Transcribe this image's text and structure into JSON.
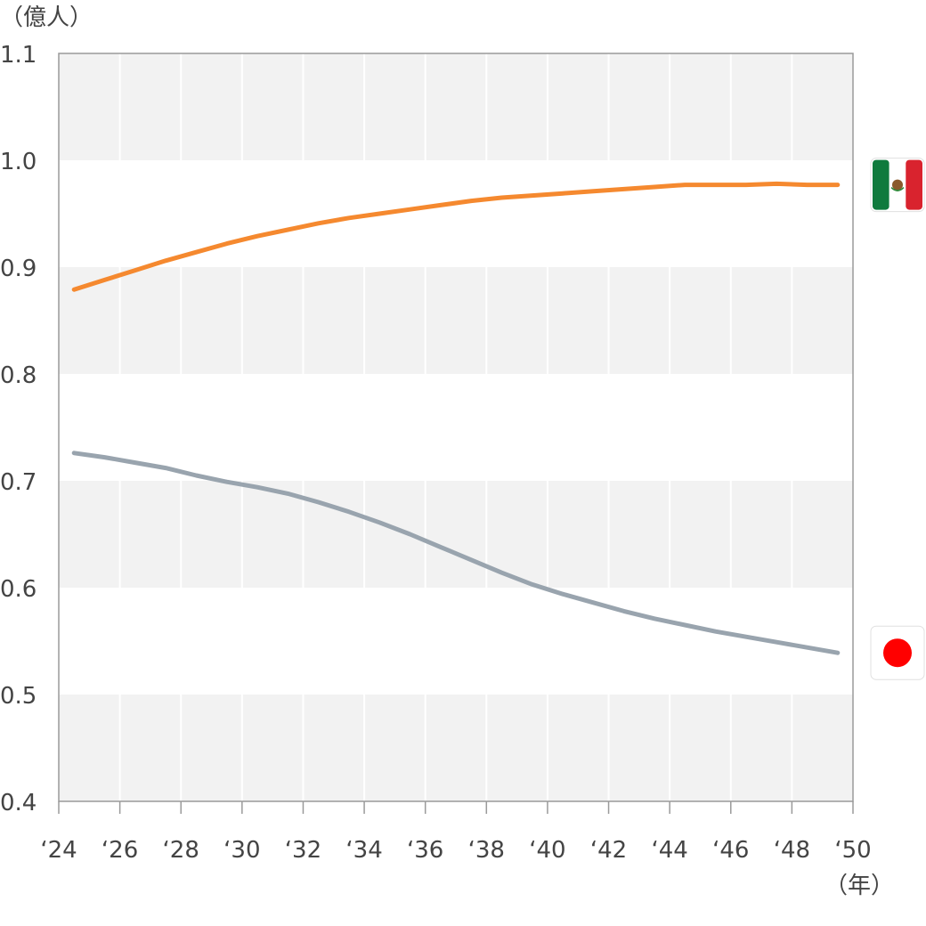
{
  "chart_data": {
    "type": "line",
    "title": "",
    "xlabel": "",
    "ylabel": "",
    "y_unit_label": "（億人）",
    "x_unit_label": "（年）",
    "xlim": [
      2024,
      2050
    ],
    "ylim": [
      0.4,
      1.1
    ],
    "x_ticks": [
      2024,
      2026,
      2028,
      2030,
      2032,
      2034,
      2036,
      2038,
      2040,
      2042,
      2044,
      2046,
      2048,
      2050
    ],
    "x_tick_labels": [
      "‘24",
      "‘26",
      "‘28",
      "‘30",
      "‘32",
      "‘34",
      "‘36",
      "‘38",
      "‘40",
      "‘42",
      "‘44",
      "‘46",
      "‘48",
      "‘50"
    ],
    "y_ticks": [
      0.4,
      0.5,
      0.6,
      0.7,
      0.8,
      0.9,
      1.0,
      1.1
    ],
    "y_tick_labels": [
      "0.4",
      "0.5",
      "0.6",
      "0.7",
      "0.8",
      "0.9",
      "1.0",
      "1.1"
    ],
    "grid": "vertical lines with alternating horizontal bands",
    "legend": "flag icons at right end of each line",
    "series": [
      {
        "flag": "mexico-flag",
        "color": "#f5892f",
        "x": [
          2024.5,
          2025.5,
          2026.5,
          2027.5,
          2028.5,
          2029.5,
          2030.5,
          2031.5,
          2032.5,
          2033.5,
          2034.5,
          2035.5,
          2036.5,
          2037.5,
          2038.5,
          2039.5,
          2040.5,
          2041.5,
          2042.5,
          2043.5,
          2044.5,
          2045.5,
          2046.5,
          2047.5,
          2048.5,
          2049.5
        ],
        "values": [
          0.879,
          0.888,
          0.897,
          0.906,
          0.914,
          0.922,
          0.929,
          0.935,
          0.941,
          0.946,
          0.95,
          0.954,
          0.958,
          0.962,
          0.965,
          0.967,
          0.969,
          0.971,
          0.973,
          0.975,
          0.977,
          0.977,
          0.977,
          0.978,
          0.977,
          0.977
        ]
      },
      {
        "flag": "japan-flag",
        "color": "#99a4ae",
        "x": [
          2024.5,
          2025.5,
          2026.5,
          2027.5,
          2028.5,
          2029.5,
          2030.5,
          2031.5,
          2032.5,
          2033.5,
          2034.5,
          2035.5,
          2036.5,
          2037.5,
          2038.5,
          2039.5,
          2040.5,
          2041.5,
          2042.5,
          2043.5,
          2044.5,
          2045.5,
          2046.5,
          2047.5,
          2048.5,
          2049.5
        ],
        "values": [
          0.726,
          0.722,
          0.717,
          0.712,
          0.705,
          0.699,
          0.694,
          0.688,
          0.68,
          0.671,
          0.661,
          0.65,
          0.638,
          0.626,
          0.614,
          0.603,
          0.594,
          0.586,
          0.578,
          0.571,
          0.565,
          0.559,
          0.554,
          0.549,
          0.544,
          0.539
        ]
      }
    ]
  }
}
